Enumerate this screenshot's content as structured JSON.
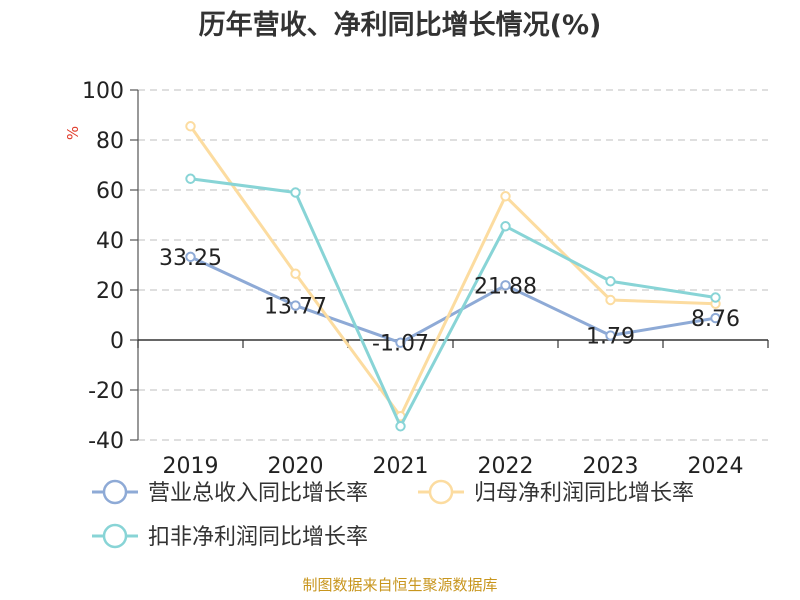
{
  "chart_data": {
    "type": "line",
    "title": "历年营收、净利同比增长情况(%)",
    "ylabel": "%",
    "categories": [
      "2019",
      "2020",
      "2021",
      "2022",
      "2023",
      "2024"
    ],
    "ylim": [
      -40,
      100
    ],
    "yticks": [
      100,
      80,
      60,
      40,
      20,
      0,
      -20,
      -40
    ],
    "grid": true,
    "legend_position": "bottom",
    "series": [
      {
        "name": "营业总收入同比增长率",
        "values": [
          33.25,
          13.77,
          -1.07,
          21.88,
          1.79,
          8.76
        ],
        "data_labels": [
          "33.25",
          "13.77",
          "-1.07",
          "21.88",
          "1.79",
          "8.76"
        ],
        "color": "#8eaad6"
      },
      {
        "name": "归母净利润同比增长率",
        "values": [
          85.5,
          26.5,
          -30.5,
          57.5,
          16.0,
          14.5
        ],
        "color": "#fcdca0"
      },
      {
        "name": "扣非净利润同比增长率",
        "values": [
          64.5,
          59.0,
          -34.5,
          45.5,
          23.5,
          17.0
        ],
        "color": "#88d4d6"
      }
    ]
  },
  "footer": {
    "source": "制图数据来自恒生聚源数据库"
  }
}
